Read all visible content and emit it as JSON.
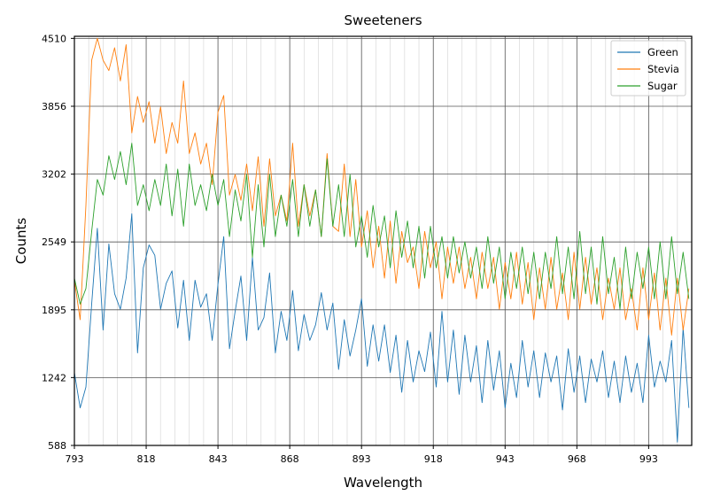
{
  "chart_data": {
    "type": "line",
    "title": "Sweeteners",
    "xlabel": "Wavelength",
    "ylabel": "Counts",
    "xlim": [
      793,
      1008
    ],
    "ylim": [
      588,
      4530
    ],
    "xticks": [
      793,
      818,
      843,
      868,
      893,
      918,
      943,
      968,
      993
    ],
    "yticks": [
      588,
      1242,
      1895,
      2549,
      3202,
      3856,
      4510
    ],
    "xtick_labels": [
      "793",
      "818",
      "843",
      "868",
      "893",
      "918",
      "943",
      "968",
      "993"
    ],
    "ytick_labels": [
      "588",
      "1242",
      "1895",
      "2549",
      "3202",
      "3856",
      "4510"
    ],
    "grid": true,
    "legend_position": "upper right",
    "series": [
      {
        "name": "Green",
        "color": "#1f77b4",
        "x": [
          793,
          795,
          797,
          799,
          801,
          803,
          805,
          807,
          809,
          811,
          813,
          815,
          817,
          819,
          821,
          823,
          825,
          827,
          829,
          831,
          833,
          835,
          837,
          839,
          841,
          843,
          845,
          847,
          849,
          851,
          853,
          855,
          857,
          859,
          861,
          863,
          865,
          867,
          869,
          871,
          873,
          875,
          877,
          879,
          881,
          883,
          885,
          887,
          889,
          891,
          893,
          895,
          897,
          899,
          901,
          903,
          905,
          907,
          909,
          911,
          913,
          915,
          917,
          919,
          921,
          923,
          925,
          927,
          929,
          931,
          933,
          935,
          937,
          939,
          941,
          943,
          945,
          947,
          949,
          951,
          953,
          955,
          957,
          959,
          961,
          963,
          965,
          967,
          969,
          971,
          973,
          975,
          977,
          979,
          981,
          983,
          985,
          987,
          989,
          991,
          993,
          995,
          997,
          999,
          1001,
          1003,
          1005,
          1007
        ],
        "y": [
          1290,
          950,
          1150,
          1950,
          2680,
          1700,
          2530,
          2050,
          1900,
          2200,
          2820,
          1480,
          2300,
          2520,
          2420,
          1900,
          2150,
          2270,
          1720,
          2180,
          1600,
          2180,
          1920,
          2050,
          1600,
          2140,
          2600,
          1520,
          1880,
          2220,
          1600,
          2400,
          1700,
          1820,
          2250,
          1480,
          1880,
          1600,
          2080,
          1500,
          1850,
          1600,
          1750,
          2060,
          1700,
          1960,
          1320,
          1800,
          1450,
          1700,
          2000,
          1350,
          1750,
          1400,
          1750,
          1290,
          1650,
          1100,
          1600,
          1200,
          1500,
          1300,
          1680,
          1150,
          1880,
          1200,
          1700,
          1080,
          1650,
          1200,
          1550,
          1000,
          1600,
          1120,
          1500,
          950,
          1380,
          1050,
          1600,
          1150,
          1500,
          1050,
          1480,
          1200,
          1450,
          930,
          1520,
          1100,
          1450,
          1000,
          1420,
          1200,
          1500,
          1050,
          1400,
          1000,
          1450,
          1100,
          1380,
          1000,
          1650,
          1150,
          1400,
          1200,
          1600,
          620,
          1720,
          950
        ]
      },
      {
        "name": "Stevia",
        "color": "#ff7f0e",
        "x": [
          793,
          795,
          797,
          799,
          801,
          803,
          805,
          807,
          809,
          811,
          813,
          815,
          817,
          819,
          821,
          823,
          825,
          827,
          829,
          831,
          833,
          835,
          837,
          839,
          841,
          843,
          845,
          847,
          849,
          851,
          853,
          855,
          857,
          859,
          861,
          863,
          865,
          867,
          869,
          871,
          873,
          875,
          877,
          879,
          881,
          883,
          885,
          887,
          889,
          891,
          893,
          895,
          897,
          899,
          901,
          903,
          905,
          907,
          909,
          911,
          913,
          915,
          917,
          919,
          921,
          923,
          925,
          927,
          929,
          931,
          933,
          935,
          937,
          939,
          941,
          943,
          945,
          947,
          949,
          951,
          953,
          955,
          957,
          959,
          961,
          963,
          965,
          967,
          969,
          971,
          973,
          975,
          977,
          979,
          981,
          983,
          985,
          987,
          989,
          991,
          993,
          995,
          997,
          999,
          1001,
          1003,
          1005,
          1007
        ],
        "y": [
          2180,
          1800,
          2900,
          4300,
          4510,
          4300,
          4200,
          4420,
          4100,
          4450,
          3600,
          3950,
          3700,
          3900,
          3500,
          3850,
          3400,
          3700,
          3500,
          4100,
          3400,
          3600,
          3300,
          3500,
          3100,
          3800,
          3960,
          3000,
          3200,
          2950,
          3300,
          2850,
          3370,
          2700,
          3350,
          2800,
          3000,
          2750,
          3500,
          2700,
          3100,
          2800,
          3050,
          2600,
          3400,
          2700,
          2650,
          3300,
          2600,
          3150,
          2500,
          2850,
          2300,
          2700,
          2200,
          2750,
          2150,
          2650,
          2350,
          2500,
          2100,
          2650,
          2300,
          2550,
          2000,
          2500,
          2150,
          2500,
          2100,
          2400,
          2000,
          2450,
          2100,
          2400,
          1900,
          2350,
          2000,
          2450,
          1950,
          2350,
          1800,
          2300,
          1900,
          2400,
          1900,
          2250,
          1800,
          2450,
          1900,
          2400,
          1950,
          2300,
          1800,
          2200,
          1900,
          2300,
          1800,
          2100,
          1700,
          2300,
          1800,
          2250,
          1700,
          2200,
          1650,
          2200,
          1700,
          2100
        ]
      },
      {
        "name": "Sugar",
        "color": "#2ca02c",
        "x": [
          793,
          795,
          797,
          799,
          801,
          803,
          805,
          807,
          809,
          811,
          813,
          815,
          817,
          819,
          821,
          823,
          825,
          827,
          829,
          831,
          833,
          835,
          837,
          839,
          841,
          843,
          845,
          847,
          849,
          851,
          853,
          855,
          857,
          859,
          861,
          863,
          865,
          867,
          869,
          871,
          873,
          875,
          877,
          879,
          881,
          883,
          885,
          887,
          889,
          891,
          893,
          895,
          897,
          899,
          901,
          903,
          905,
          907,
          909,
          911,
          913,
          915,
          917,
          919,
          921,
          923,
          925,
          927,
          929,
          931,
          933,
          935,
          937,
          939,
          941,
          943,
          945,
          947,
          949,
          951,
          953,
          955,
          957,
          959,
          961,
          963,
          965,
          967,
          969,
          971,
          973,
          975,
          977,
          979,
          981,
          983,
          985,
          987,
          989,
          991,
          993,
          995,
          997,
          999,
          1001,
          1003,
          1005,
          1007
        ],
        "y": [
          2200,
          1950,
          2100,
          2650,
          3150,
          3000,
          3380,
          3150,
          3420,
          3100,
          3500,
          2900,
          3100,
          2850,
          3150,
          2900,
          3300,
          2800,
          3250,
          2700,
          3300,
          2900,
          3100,
          2850,
          3200,
          2900,
          3150,
          2600,
          3050,
          2750,
          3200,
          2400,
          3100,
          2500,
          3200,
          2600,
          3000,
          2700,
          3150,
          2600,
          3100,
          2700,
          3050,
          2600,
          3350,
          2700,
          3100,
          2600,
          3200,
          2500,
          2800,
          2400,
          2900,
          2500,
          2800,
          2300,
          2850,
          2400,
          2750,
          2300,
          2700,
          2200,
          2700,
          2300,
          2600,
          2200,
          2600,
          2250,
          2550,
          2200,
          2500,
          2100,
          2600,
          2150,
          2500,
          2000,
          2450,
          2100,
          2500,
          2050,
          2450,
          2000,
          2450,
          2100,
          2600,
          2050,
          2500,
          2000,
          2650,
          2050,
          2500,
          1950,
          2600,
          2050,
          2400,
          1900,
          2500,
          2000,
          2450,
          2100,
          2500,
          2000,
          2550,
          2000,
          2600,
          2050,
          2450,
          2000
        ]
      }
    ]
  }
}
